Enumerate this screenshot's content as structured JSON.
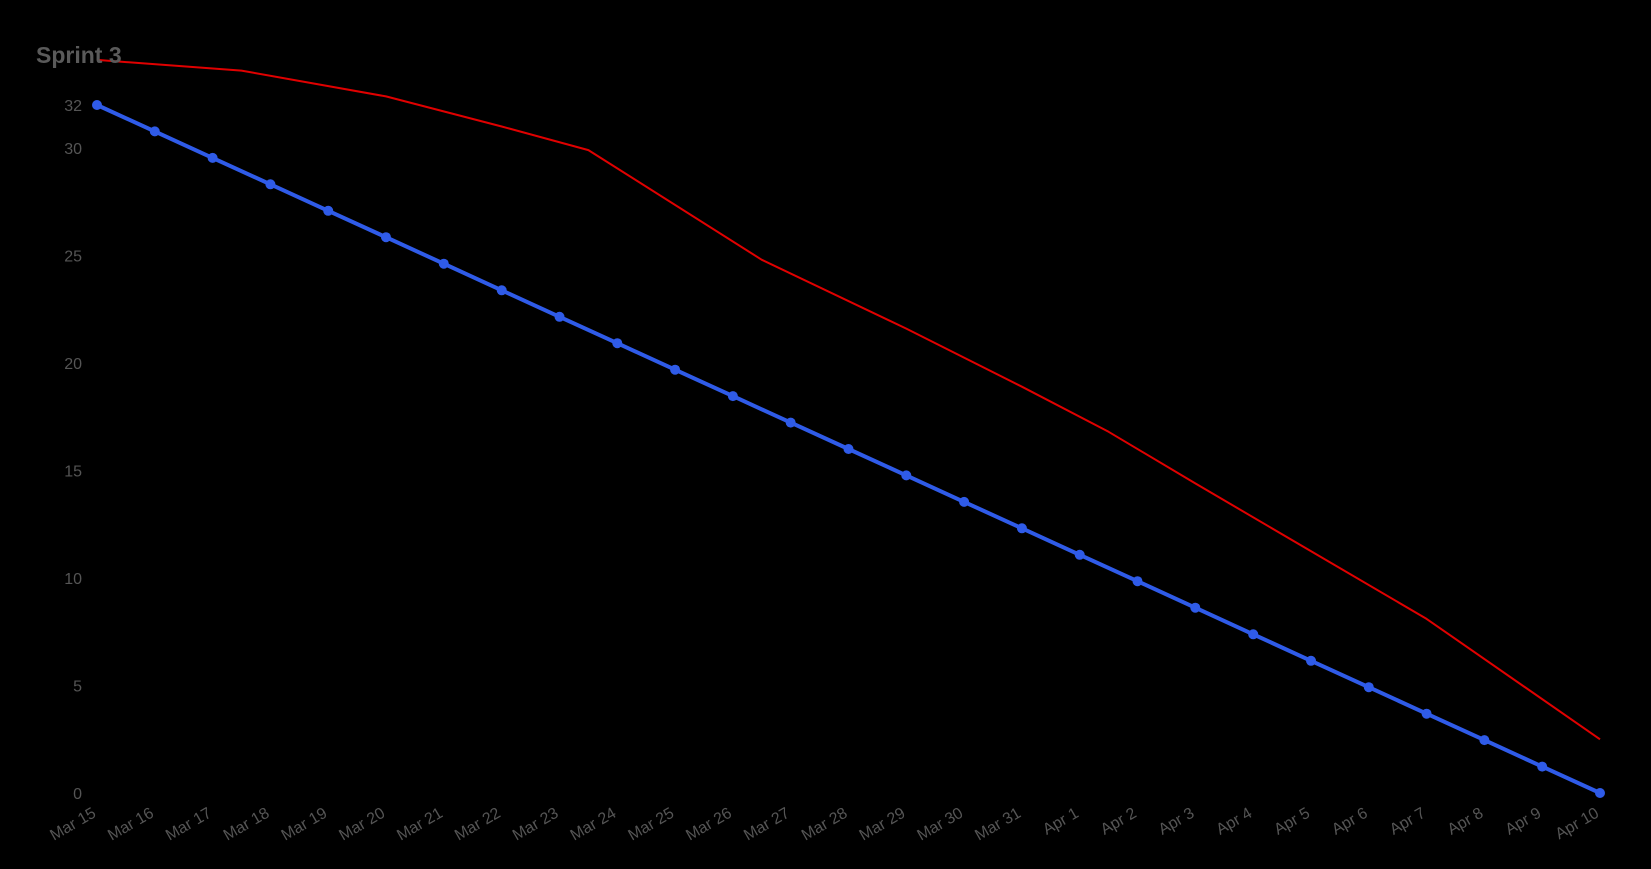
{
  "chart_data": {
    "type": "line",
    "title": "Sprint 3",
    "xlabel": "",
    "ylabel": "",
    "x": [
      "Mar 15",
      "Mar 16",
      "Mar 17",
      "Mar 18",
      "Mar 19",
      "Mar 20",
      "Mar 21",
      "Mar 22",
      "Mar 23",
      "Mar 24",
      "Mar 25",
      "Mar 26",
      "Mar 27",
      "Mar 28",
      "Mar 29",
      "Mar 30",
      "Mar 31",
      "Apr 1",
      "Apr 2",
      "Apr 3",
      "Apr 4",
      "Apr 5",
      "Apr 6",
      "Apr 7",
      "Apr 8",
      "Apr 9",
      "Apr 10"
    ],
    "y_ticks": [
      0,
      5,
      10,
      15,
      20,
      25,
      30,
      32
    ],
    "ylim": [
      0,
      32
    ],
    "grid": false,
    "legend": "none",
    "series": [
      {
        "color": "#e00000",
        "markers": false,
        "points": [
          {
            "x": "Mar 15",
            "y": 34.1
          },
          {
            "x": "Mar 17.5",
            "y": 33.6
          },
          {
            "x": "Mar 20",
            "y": 32.4
          },
          {
            "x": "Mar 22",
            "y": 31.0
          },
          {
            "x": "Mar 23.5",
            "y": 29.9
          },
          {
            "x": "Mar 26.5",
            "y": 24.8
          },
          {
            "x": "Mar 29",
            "y": 21.6
          },
          {
            "x": "Mar 31",
            "y": 18.9
          },
          {
            "x": "Apr 1.5",
            "y": 16.8
          },
          {
            "x": "Apr 3",
            "y": 14.4
          },
          {
            "x": "Apr 7",
            "y": 8.1
          },
          {
            "x": "Apr 10",
            "y": 2.5
          }
        ]
      },
      {
        "color": "#2f5be8",
        "markers": true,
        "values": [
          32,
          30.77,
          29.54,
          28.31,
          27.08,
          25.85,
          24.62,
          23.38,
          22.15,
          20.92,
          19.69,
          18.46,
          17.23,
          16.0,
          14.77,
          13.54,
          12.31,
          11.08,
          9.85,
          8.62,
          7.38,
          6.15,
          4.92,
          3.69,
          2.46,
          1.23,
          0
        ]
      }
    ]
  }
}
